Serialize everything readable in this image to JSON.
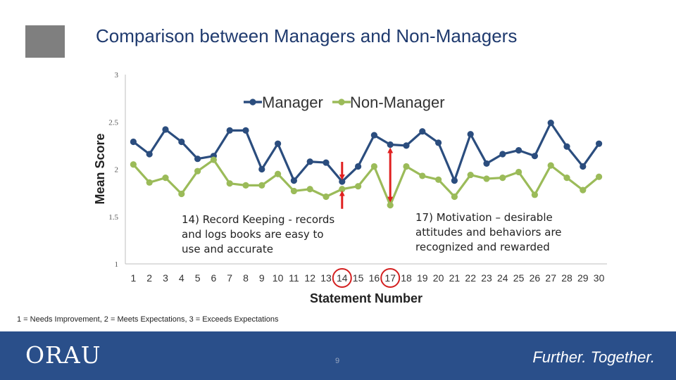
{
  "title": "Comparison between Managers and Non-Managers",
  "notes": {
    "note14": [
      "14) Record Keeping - records",
      "and logs books are easy to",
      "use and accurate"
    ],
    "note17": [
      "17) Motivation – desirable",
      "attitudes and behaviors are",
      "recognized and rewarded"
    ]
  },
  "scale_note": "1 = Needs Improvement, 2 = Meets Expectations, 3 = Exceeds Expectations",
  "footer": {
    "logo": "ORAU",
    "page_number": "9",
    "tagline": "Further. Together."
  },
  "colors": {
    "manager": "#2b4d7e",
    "non_manager": "#9bbb59",
    "arrow": "#e02020",
    "circle": "#d42020",
    "footer": "#2a4f8a"
  },
  "chart_data": {
    "type": "line",
    "x": [
      1,
      2,
      3,
      4,
      5,
      6,
      7,
      8,
      9,
      10,
      11,
      12,
      13,
      14,
      15,
      16,
      17,
      18,
      19,
      20,
      21,
      22,
      23,
      24,
      25,
      26,
      27,
      28,
      29,
      30
    ],
    "xlabel": "Statement Number",
    "ylabel": "Mean Score",
    "ylim": [
      1,
      3
    ],
    "yticks": [
      "1",
      "1.5",
      "2",
      "2.5",
      "3"
    ],
    "legend_position": "top",
    "grid": false,
    "series": [
      {
        "name": "Manager",
        "values": [
          2.29,
          2.16,
          2.42,
          2.29,
          2.11,
          2.14,
          2.41,
          2.41,
          2.0,
          2.27,
          1.88,
          2.08,
          2.07,
          1.87,
          2.03,
          2.36,
          2.26,
          2.25,
          2.4,
          2.28,
          1.88,
          2.37,
          2.06,
          2.16,
          2.2,
          2.14,
          2.49,
          2.24,
          2.03,
          2.27
        ]
      },
      {
        "name": "Non-Manager",
        "values": [
          2.05,
          1.86,
          1.91,
          1.74,
          1.98,
          2.1,
          1.85,
          1.83,
          1.83,
          1.95,
          1.77,
          1.79,
          1.71,
          1.79,
          1.82,
          2.03,
          1.62,
          2.03,
          1.93,
          1.89,
          1.71,
          1.94,
          1.9,
          1.91,
          1.97,
          1.73,
          2.04,
          1.91,
          1.78,
          1.92
        ]
      }
    ],
    "annotations": [
      {
        "type": "double-arrow",
        "x": 14
      },
      {
        "type": "double-arrow",
        "x": 17
      },
      {
        "type": "circle",
        "x": 14
      },
      {
        "type": "circle",
        "x": 17
      }
    ]
  }
}
